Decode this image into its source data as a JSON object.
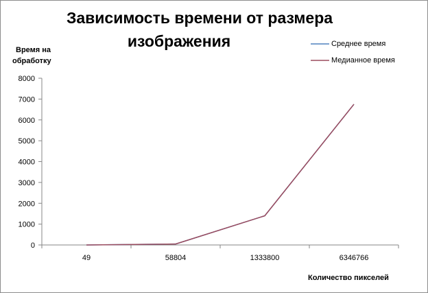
{
  "chart_data": {
    "type": "line",
    "title_lines": [
      "Зависимость времени от размера",
      "изображения"
    ],
    "ylabel_lines": [
      "Время на",
      "обработку"
    ],
    "xlabel": "Количество пикселей",
    "categories": [
      "49",
      "58804",
      "1333800",
      "6346766"
    ],
    "y_ticks": [
      0,
      1000,
      2000,
      3000,
      4000,
      5000,
      6000,
      7000,
      8000
    ],
    "ylim": [
      0,
      8000
    ],
    "grid": false,
    "legend_position": "top-right",
    "series": [
      {
        "name": "Среднее время",
        "values": [
          0,
          45,
          1400,
          6750
        ],
        "color": "#4f81bd"
      },
      {
        "name": "Медианное время",
        "values": [
          0,
          45,
          1400,
          6750
        ],
        "color": "#9b4b5e"
      }
    ]
  }
}
